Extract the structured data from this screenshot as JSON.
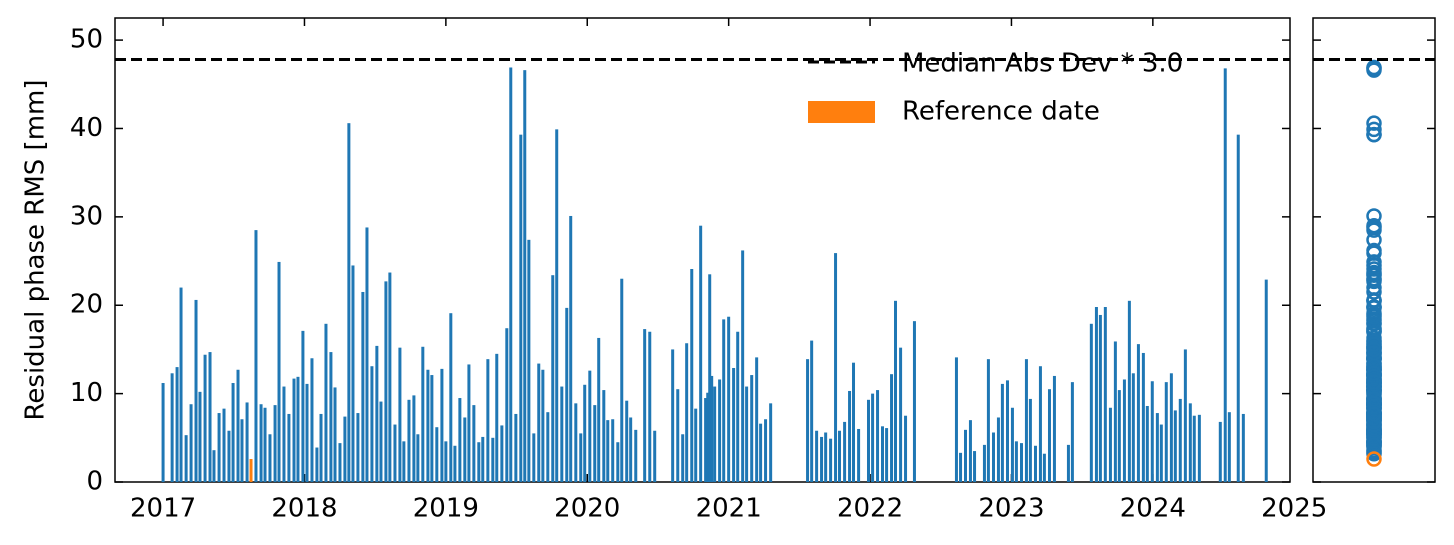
{
  "chart_data": {
    "type": "bar",
    "ylabel": "Residual phase RMS [mm]",
    "xlim": [
      2016.66,
      2024.97
    ],
    "xticks": [
      2017,
      2018,
      2019,
      2020,
      2021,
      2022,
      2023,
      2024,
      2025
    ],
    "ylim": [
      0,
      52.5
    ],
    "yticks": [
      0,
      10,
      20,
      30,
      40,
      50
    ],
    "series": [
      {
        "color": "#1f77b4",
        "x": [
          2017.0,
          2017.064,
          2017.099,
          2017.127,
          2017.163,
          2017.198,
          2017.233,
          2017.261,
          2017.297,
          2017.332,
          2017.36,
          2017.396,
          2017.431,
          2017.466,
          2017.495,
          2017.53,
          2017.558,
          2017.594,
          2017.657,
          2017.693,
          2017.721,
          2017.756,
          2017.792,
          2017.82,
          2017.855,
          2017.89,
          2017.926,
          2017.954,
          2017.989,
          2018.018,
          2018.053,
          2018.088,
          2018.117,
          2018.152,
          2018.187,
          2018.216,
          2018.251,
          2018.286,
          2018.314,
          2018.343,
          2018.378,
          2018.413,
          2018.442,
          2018.477,
          2018.512,
          2018.541,
          2018.576,
          2018.604,
          2018.64,
          2018.675,
          2018.703,
          2018.739,
          2018.774,
          2018.802,
          2018.837,
          2018.873,
          2018.901,
          2018.936,
          2018.972,
          2019.0,
          2019.035,
          2019.064,
          2019.099,
          2019.134,
          2019.163,
          2019.198,
          2019.233,
          2019.261,
          2019.297,
          2019.332,
          2019.36,
          2019.396,
          2019.431,
          2019.459,
          2019.495,
          2019.53,
          2019.558,
          2019.587,
          2019.622,
          2019.657,
          2019.686,
          2019.721,
          2019.756,
          2019.784,
          2019.82,
          2019.855,
          2019.883,
          2019.919,
          2019.954,
          2019.982,
          2020.018,
          2020.053,
          2020.081,
          2020.117,
          2020.145,
          2020.18,
          2020.216,
          2020.244,
          2020.279,
          2020.307,
          2020.343,
          2020.406,
          2020.442,
          2020.477,
          2020.604,
          2020.64,
          2020.675,
          2020.703,
          2020.739,
          2020.767,
          2020.802,
          2020.837,
          2020.852,
          2020.866,
          2020.88,
          2020.901,
          2020.936,
          2020.965,
          2021.0,
          2021.035,
          2021.064,
          2021.099,
          2021.127,
          2021.163,
          2021.198,
          2021.226,
          2021.261,
          2021.297,
          2021.558,
          2021.587,
          2021.622,
          2021.657,
          2021.686,
          2021.721,
          2021.756,
          2021.784,
          2021.82,
          2021.855,
          2021.883,
          2021.919,
          2021.989,
          2022.018,
          2022.053,
          2022.088,
          2022.117,
          2022.152,
          2022.18,
          2022.216,
          2022.251,
          2022.314,
          2022.611,
          2022.64,
          2022.675,
          2022.71,
          2022.739,
          2022.809,
          2022.837,
          2022.873,
          2022.908,
          2022.936,
          2022.972,
          2023.007,
          2023.035,
          2023.071,
          2023.106,
          2023.134,
          2023.17,
          2023.205,
          2023.233,
          2023.269,
          2023.304,
          2023.403,
          2023.431,
          2023.565,
          2023.601,
          2023.629,
          2023.664,
          2023.7,
          2023.735,
          2023.763,
          2023.799,
          2023.834,
          2023.862,
          2023.898,
          2023.933,
          2023.961,
          2023.996,
          2024.032,
          2024.06,
          2024.095,
          2024.131,
          2024.159,
          2024.194,
          2024.23,
          2024.265,
          2024.293,
          2024.329,
          2024.477,
          2024.512,
          2024.541,
          2024.604,
          2024.64,
          2024.802
        ],
        "values": [
          11.2,
          12.3,
          13,
          22,
          5.3,
          8.8,
          20.6,
          10.2,
          14.4,
          14.7,
          3.6,
          7.8,
          8.3,
          5.8,
          11.2,
          12.7,
          7.1,
          9,
          28.5,
          8.8,
          8.4,
          5.4,
          8.7,
          24.9,
          10.8,
          7.7,
          11.7,
          11.9,
          17.1,
          11.1,
          14,
          3.9,
          7.7,
          17.9,
          14.7,
          10.7,
          4.4,
          7.4,
          40.6,
          24.5,
          7.8,
          21.5,
          28.8,
          13.1,
          15.4,
          9.1,
          22.7,
          23.7,
          6.5,
          15.2,
          4.6,
          9.3,
          9.8,
          5.4,
          15.3,
          12.7,
          12.1,
          6.2,
          12.8,
          4.6,
          19.1,
          4.1,
          9.5,
          7.3,
          13.3,
          8.7,
          4.5,
          5.1,
          13.9,
          5,
          14.5,
          6.4,
          17.4,
          46.9,
          7.7,
          39.3,
          46.6,
          27.4,
          5.5,
          13.4,
          12.7,
          7.9,
          23.4,
          39.9,
          10.8,
          19.7,
          30.1,
          8.9,
          5.5,
          11,
          12.6,
          8.7,
          16.3,
          10.4,
          7,
          7.1,
          4.5,
          23,
          9.2,
          7.3,
          5.9,
          17.3,
          17,
          5.8,
          15,
          10.5,
          5.4,
          15.7,
          24.1,
          8.3,
          29,
          9.5,
          10.1,
          23.5,
          12,
          10.8,
          11.6,
          18.4,
          18.7,
          12.9,
          17,
          26.2,
          10.8,
          12.1,
          14.1,
          6.6,
          7.1,
          8.9,
          13.9,
          16,
          5.8,
          5.1,
          5.6,
          4.9,
          25.9,
          5.8,
          6.8,
          10.3,
          13.5,
          6,
          9.3,
          10,
          10.4,
          6.3,
          6.1,
          12.2,
          20.5,
          15.2,
          7.5,
          18.2,
          14.1,
          3.3,
          5.9,
          7,
          3.5,
          4.2,
          13.9,
          5.6,
          7.3,
          11.1,
          11.5,
          8.4,
          4.6,
          4.4,
          13.9,
          9.4,
          4.1,
          13.1,
          3.2,
          10.5,
          12,
          4.2,
          11.3,
          17.9,
          19.8,
          18.9,
          19.8,
          8.4,
          15.9,
          10.4,
          11.6,
          20.5,
          12.3,
          15.6,
          14.6,
          8.6,
          11.4,
          7.8,
          6.5,
          11.3,
          12.3,
          8.1,
          9.4,
          15,
          8.9,
          7.5,
          7.6,
          6.8,
          46.8,
          7.9,
          39.3,
          7.7,
          22.9
        ]
      }
    ],
    "reference": {
      "name": "Reference date",
      "color": "#ff7f0e",
      "x": 2017.622,
      "value": 2.6
    },
    "threshold": {
      "name": "Median Abs Dev * 3.0",
      "value": 47.8
    }
  }
}
